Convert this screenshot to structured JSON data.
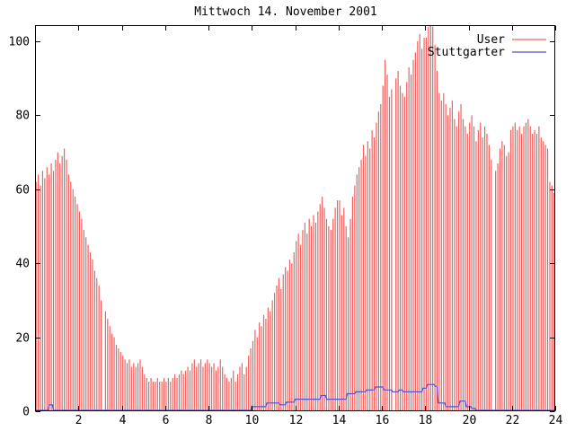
{
  "title": "Mittwoch 14. November 2001",
  "colors": {
    "user": "#f2605e",
    "stuttgarter": "#5151d3",
    "axis": "#000000",
    "background": "#ffffff"
  },
  "legend": [
    {
      "label": "User",
      "color": "#f2605e"
    },
    {
      "label": "Stuttgarter",
      "color": "#5151d3"
    }
  ],
  "chart_data": {
    "type": "bar",
    "title": "Mittwoch 14. November 2001",
    "xlabel": "",
    "ylabel": "",
    "x_range": [
      0,
      24
    ],
    "y_range": [
      0,
      104.4
    ],
    "x_ticks": [
      2,
      4,
      6,
      8,
      10,
      12,
      14,
      16,
      18,
      20,
      22,
      24
    ],
    "y_ticks": [
      0,
      20,
      40,
      60,
      80,
      100
    ],
    "grid": false,
    "legend_position": "top-right-inside",
    "series": [
      {
        "name": "User",
        "type": "impulses",
        "color": "#f2605e",
        "step_hours": 0.1,
        "note": "zero entries are missing bars (gaps) in the original plot",
        "values_by_hour": [
          [
            62,
            64,
            61,
            65,
            63,
            66,
            64,
            67,
            65,
            68
          ],
          [
            70,
            67,
            69,
            71,
            68,
            64,
            62,
            60,
            58,
            56
          ],
          [
            54,
            52,
            49,
            47,
            45,
            43,
            41,
            38,
            36,
            34
          ],
          [
            30,
            0,
            27,
            25,
            23,
            21,
            20,
            18,
            17,
            16
          ],
          [
            15,
            14,
            13,
            14,
            12,
            13,
            12,
            13,
            14,
            12
          ],
          [
            10,
            9,
            8,
            9,
            8,
            8,
            9,
            8,
            8,
            9
          ],
          [
            8,
            9,
            8,
            9,
            10,
            9,
            10,
            11,
            10,
            11
          ],
          [
            12,
            11,
            13,
            14,
            12,
            13,
            14,
            12,
            13,
            14
          ],
          [
            13,
            12,
            13,
            11,
            12,
            14,
            12,
            10,
            9,
            8
          ],
          [
            9,
            11,
            8,
            10,
            12,
            13,
            10,
            12,
            15,
            17
          ],
          [
            19,
            22,
            20,
            24,
            23,
            26,
            25,
            28,
            27,
            30
          ],
          [
            32,
            34,
            36,
            33,
            37,
            39,
            38,
            41,
            40,
            43
          ],
          [
            46,
            48,
            45,
            49,
            51,
            48,
            52,
            50,
            53,
            51
          ],
          [
            54,
            56,
            58,
            55,
            52,
            50,
            49,
            52,
            55,
            57
          ],
          [
            57,
            53,
            55,
            50,
            47,
            52,
            58,
            61,
            64,
            66
          ],
          [
            68,
            72,
            69,
            73,
            71,
            76,
            74,
            78,
            81,
            83
          ],
          [
            88,
            95,
            91,
            85,
            87,
            0,
            90,
            92,
            88,
            86
          ],
          [
            85,
            89,
            93,
            91,
            95,
            97,
            100,
            102,
            98,
            101
          ],
          [
            101,
            104,
            106,
            104,
            99,
            92,
            86,
            84,
            86,
            83
          ],
          [
            80,
            82,
            84,
            79,
            77,
            81,
            83,
            79,
            77,
            75
          ],
          [
            78,
            80,
            77,
            73,
            76,
            78,
            74,
            77,
            75,
            72
          ],
          [
            68,
            0,
            65,
            67,
            71,
            73,
            72,
            69,
            70,
            76
          ],
          [
            77,
            78,
            76,
            77,
            75,
            77,
            78,
            79,
            77,
            75
          ],
          [
            76,
            75,
            77,
            74,
            73,
            72,
            71,
            62,
            61,
            59
          ]
        ]
      },
      {
        "name": "Stuttgarter",
        "type": "step-line",
        "color": "#5151d3",
        "points": [
          [
            0,
            0
          ],
          [
            0.6,
            0
          ],
          [
            0.65,
            1.5
          ],
          [
            0.8,
            1.5
          ],
          [
            0.85,
            0
          ],
          [
            9.95,
            0
          ],
          [
            10.0,
            1
          ],
          [
            10.65,
            1
          ],
          [
            10.7,
            2
          ],
          [
            11.25,
            2
          ],
          [
            11.3,
            1.5
          ],
          [
            11.55,
            1.5
          ],
          [
            11.6,
            2.2
          ],
          [
            11.95,
            2.2
          ],
          [
            12.0,
            3
          ],
          [
            13.15,
            3
          ],
          [
            13.2,
            4
          ],
          [
            13.4,
            4
          ],
          [
            13.45,
            3
          ],
          [
            14.35,
            3
          ],
          [
            14.4,
            4.5
          ],
          [
            14.75,
            4.5
          ],
          [
            14.8,
            5
          ],
          [
            15.25,
            5
          ],
          [
            15.3,
            5.5
          ],
          [
            15.65,
            5.5
          ],
          [
            15.7,
            6.3
          ],
          [
            16.05,
            6.3
          ],
          [
            16.1,
            5.5
          ],
          [
            16.45,
            5.5
          ],
          [
            16.5,
            5
          ],
          [
            16.75,
            5
          ],
          [
            16.8,
            5.5
          ],
          [
            16.95,
            5.5
          ],
          [
            17.0,
            5
          ],
          [
            17.85,
            5
          ],
          [
            17.9,
            6
          ],
          [
            18.05,
            6
          ],
          [
            18.1,
            7
          ],
          [
            18.4,
            7
          ],
          [
            18.45,
            6.5
          ],
          [
            18.55,
            6.5
          ],
          [
            18.6,
            2
          ],
          [
            18.9,
            2
          ],
          [
            18.95,
            1
          ],
          [
            19.55,
            1
          ],
          [
            19.6,
            2.5
          ],
          [
            19.85,
            2.5
          ],
          [
            19.9,
            1
          ],
          [
            20.1,
            1
          ],
          [
            20.15,
            0.5
          ],
          [
            20.3,
            0.5
          ],
          [
            20.35,
            0
          ],
          [
            24,
            0
          ]
        ]
      }
    ]
  }
}
